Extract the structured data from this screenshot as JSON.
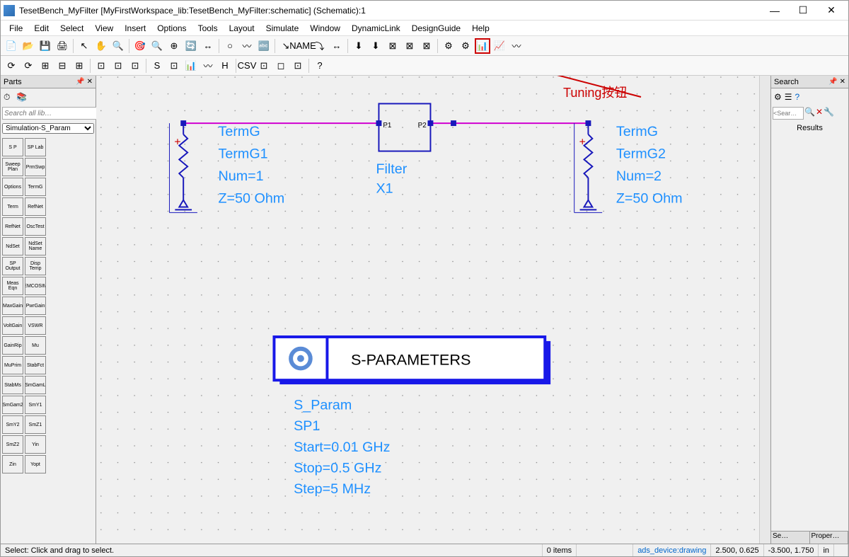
{
  "window": {
    "title": "TesetBench_MyFilter [MyFirstWorkspace_lib:TesetBench_MyFilter:schematic] (Schematic):1"
  },
  "menus": [
    "File",
    "Edit",
    "Select",
    "View",
    "Insert",
    "Options",
    "Tools",
    "Layout",
    "Simulate",
    "Window",
    "DynamicLink",
    "DesignGuide",
    "Help"
  ],
  "toolbar1_icons": [
    "📄",
    "📂",
    "💾",
    "🖨",
    "|",
    "↖",
    "✋",
    "🔍",
    "|",
    "🎯",
    "🔍",
    "⊕",
    "🔄",
    "↔",
    "|",
    "○",
    "〰",
    "🔤",
    "|",
    "↘",
    "NAME",
    "⤵",
    "↔",
    "|",
    "⬇",
    "⬇",
    "⊠",
    "⊠",
    "⊠",
    "|",
    "⚙",
    "⚙",
    "📊",
    "📈",
    "〰"
  ],
  "toolbar2_icons": [
    "⟳",
    "⟳",
    "⊞",
    "⊟",
    "⊞",
    "|",
    "⊡",
    "⊡",
    "⊡",
    "|",
    "S",
    "⊡",
    "📊",
    "〰",
    "H",
    "|",
    "CSV",
    "⊡",
    "◻",
    "⊡",
    "|",
    "?"
  ],
  "parts": {
    "title": "Parts",
    "search_placeholder": "Search all lib…",
    "dropdown": "Simulation-S_Param",
    "items": [
      [
        "S P",
        "SP Lab"
      ],
      [
        "Sweep Plan",
        "PrmSwp"
      ],
      [
        "Options",
        "TermG"
      ],
      [
        "Term",
        "RefNet"
      ],
      [
        "RefNet",
        "OscTest"
      ],
      [
        "NdSet",
        "NdSet Name"
      ],
      [
        "SP Output",
        "Disp Temp"
      ],
      [
        "Meas Eqn",
        "EMCOSIM"
      ],
      [
        "MaxGain",
        "PwrGain"
      ],
      [
        "VoltGain",
        "VSWR"
      ],
      [
        "GainRip",
        "Mu"
      ],
      [
        "MuPrim",
        "StabFct"
      ],
      [
        "StabMs",
        "SmGamL"
      ],
      [
        "SmGam2",
        "SmY1"
      ],
      [
        "SmY2",
        "SmZ1"
      ],
      [
        "SmZ2",
        "Yin"
      ],
      [
        "Zin",
        "Yopt"
      ]
    ]
  },
  "search_panel": {
    "title": "Search",
    "placeholder": "<Sear…",
    "results_label": "Results",
    "tab1": "Se…",
    "tab2": "Proper…"
  },
  "schematic": {
    "termG1": {
      "title": "TermG",
      "name": "TermG1",
      "num": "Num=1",
      "z": "Z=50 Ohm"
    },
    "termG2": {
      "title": "TermG",
      "name": "TermG2",
      "num": "Num=2",
      "z": "Z=50 Ohm"
    },
    "filter": {
      "p1": "P1",
      "p2": "P2",
      "title": "Filter",
      "name": "X1"
    },
    "sparam_box_label": "S-PARAMETERS",
    "sparam": {
      "title": "S_Param",
      "name": "SP1",
      "start": "Start=0.01 GHz",
      "stop": "Stop=0.5 GHz",
      "step": "Step=5 MHz"
    },
    "colors": {
      "wire": "#d000d0",
      "component": "#1818bb",
      "param_text": "#1e90ff",
      "selected": "#0020c0",
      "ground": "#1818bb"
    }
  },
  "annotation_text": "Tuning按钮",
  "status": {
    "hint": "Select: Click and drag to select.",
    "items": "0 items",
    "layer": "ads_device:drawing",
    "coord1": "2.500, 0.625",
    "coord2": "-3.500, 1.750",
    "unit": "in"
  }
}
